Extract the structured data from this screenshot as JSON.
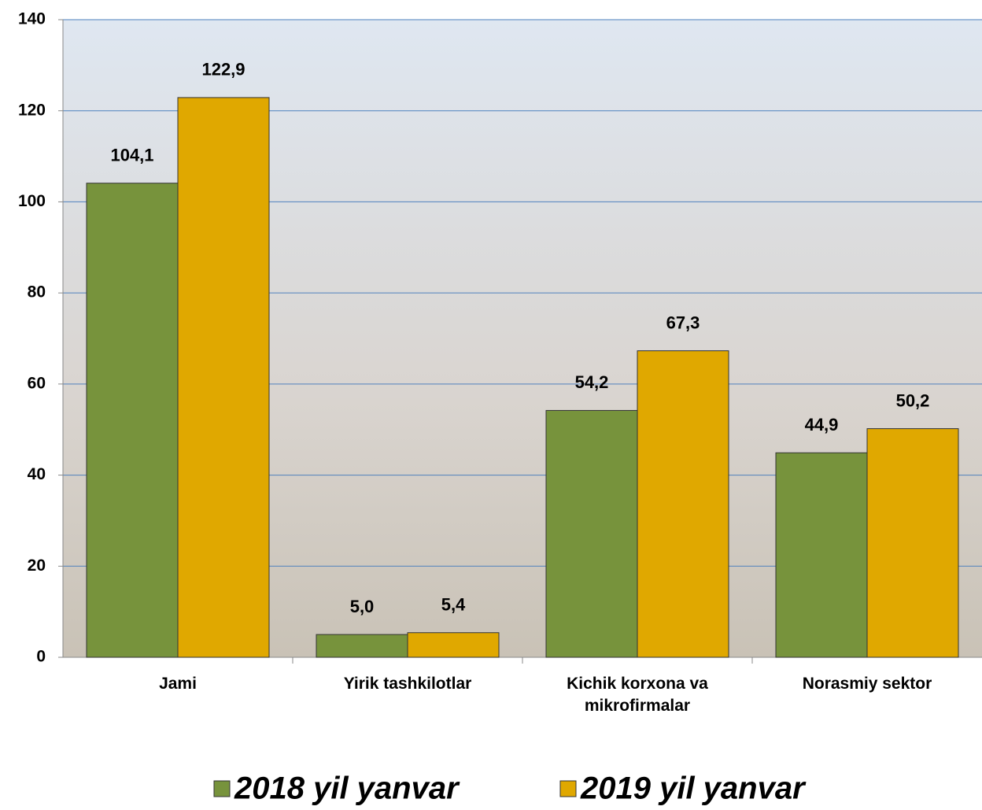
{
  "chart_data": {
    "type": "bar",
    "categories": [
      "Jami",
      "Yirik tashkilotlar",
      "Kichik korxona va mikrofirmalar",
      "Norasmiy sektor"
    ],
    "series": [
      {
        "name": "2018 yil yanvar",
        "color": "#77933c",
        "values": [
          104.1,
          5.0,
          54.2,
          44.9
        ],
        "value_labels": [
          "104,1",
          "5,0",
          "54,2",
          "44,9"
        ]
      },
      {
        "name": "2019 yil yanvar",
        "color": "#e0a800",
        "values": [
          122.9,
          5.4,
          67.3,
          50.2
        ],
        "value_labels": [
          "122,9",
          "5,4",
          "67,3",
          "50,2"
        ]
      }
    ],
    "ylim": [
      0,
      140
    ],
    "yticks": [
      0,
      20,
      40,
      60,
      80,
      100,
      120,
      140
    ],
    "grid": true
  }
}
